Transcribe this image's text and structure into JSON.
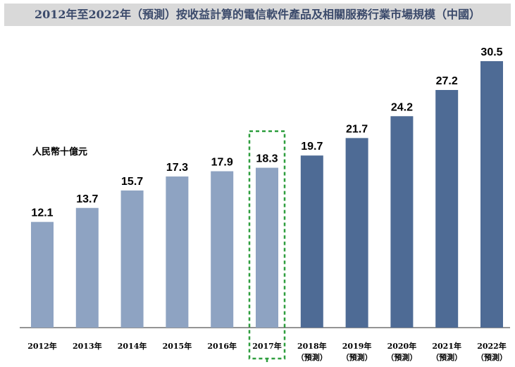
{
  "chart_data": {
    "type": "bar",
    "title": "2012年至2022年（預測）按收益計算的電信軟件產品及相關服務行業市場規模（中國）",
    "unit_label": "人民幣十億元",
    "categories": [
      {
        "year": "2012年",
        "note": ""
      },
      {
        "year": "2013年",
        "note": ""
      },
      {
        "year": "2014年",
        "note": ""
      },
      {
        "year": "2015年",
        "note": ""
      },
      {
        "year": "2016年",
        "note": ""
      },
      {
        "year": "2017年",
        "note": ""
      },
      {
        "year": "2018年",
        "note": "（預測）"
      },
      {
        "year": "2019年",
        "note": "（預測）"
      },
      {
        "year": "2020年",
        "note": "（預測）"
      },
      {
        "year": "2021年",
        "note": "（預測）"
      },
      {
        "year": "2022年",
        "note": "（預測）"
      }
    ],
    "values": [
      12.1,
      13.7,
      15.7,
      17.3,
      17.9,
      18.3,
      19.7,
      21.7,
      24.2,
      27.2,
      30.5
    ],
    "ylim": [
      0,
      37.5
    ],
    "highlight_index": 5,
    "colors": {
      "historical": "#8ea3c2",
      "forecast": "#4e6b95",
      "highlight_border": "#2e9e3e",
      "title_bar": "#d9d9d9",
      "title_text": "#3b4a6b"
    }
  }
}
